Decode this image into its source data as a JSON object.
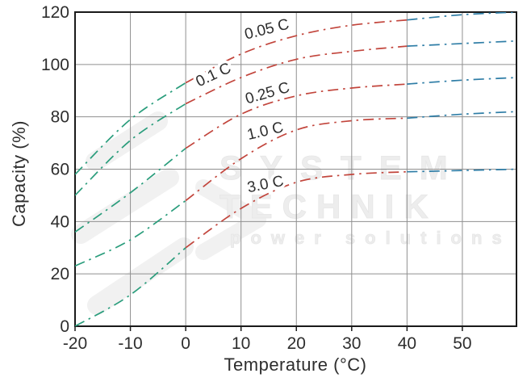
{
  "chart_data": {
    "type": "line",
    "title": "",
    "xlabel": "Temperature (°C)",
    "ylabel": "Capacity (%)",
    "xlim": [
      -20,
      60
    ],
    "ylim": [
      0,
      120
    ],
    "xticks": [
      -20,
      -10,
      0,
      10,
      20,
      30,
      40,
      50
    ],
    "yticks": [
      0,
      20,
      40,
      60,
      80,
      100,
      120
    ],
    "grid": true,
    "legend_position": "inline-curve-labels",
    "line_style": "dash-dot",
    "x": [
      -20,
      -10,
      0,
      10,
      20,
      30,
      40,
      50,
      60
    ],
    "series": [
      {
        "name": "0.05 C",
        "values": [
          58,
          79,
          93,
          104,
          111,
          115,
          117,
          119,
          120
        ]
      },
      {
        "name": "0.1 C",
        "values": [
          50,
          71,
          85,
          95,
          102,
          105,
          107,
          108,
          109
        ]
      },
      {
        "name": "0.25 C",
        "values": [
          36,
          51,
          68,
          81,
          88,
          91,
          92.5,
          94,
          95
        ]
      },
      {
        "name": "1.0 C",
        "values": [
          23,
          33,
          48,
          64,
          75,
          78.5,
          79.5,
          81,
          82
        ]
      },
      {
        "name": "3.0 C",
        "values": [
          0,
          12,
          30,
          45,
          55,
          58,
          59,
          59.5,
          60
        ]
      }
    ],
    "segment_colors": [
      {
        "from": -20,
        "to": 0,
        "color": "#2a9d7c"
      },
      {
        "from": 0,
        "to": 40,
        "color": "#c2453c"
      },
      {
        "from": 40,
        "to": 60,
        "color": "#2e7da6"
      }
    ],
    "colors": {
      "grid": "#8f8f8f",
      "frame": "#1a1a1a",
      "tick_text": "#2e2e2e",
      "curve_label_text": "#2e2e2e",
      "watermark": "#ededed"
    }
  },
  "watermark": {
    "line1": "SYSTEM",
    "line2": "TECHNIK",
    "line3": "power solutions"
  }
}
